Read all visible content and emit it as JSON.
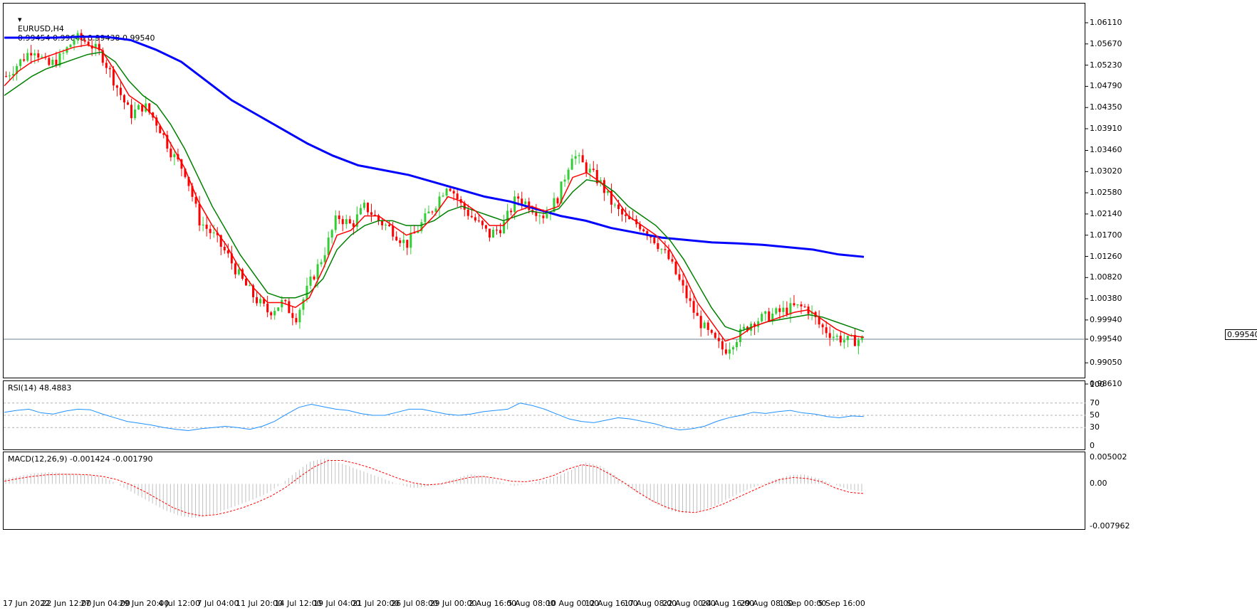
{
  "main_panel": {
    "symbol": "EURUSD,H4",
    "ohlc": "0.99454 0.99643 0.99438 0.99540",
    "current_price": "0.99540"
  },
  "rsi_panel": {
    "title": "RSI(14) 48.4883"
  },
  "macd_panel": {
    "title": "MACD(12,26,9) -0.001424 -0.001790"
  },
  "chart_data": [
    {
      "type": "candlestick",
      "title": "EURUSD,H4",
      "price_axis_ticks": [
        "1.06110",
        "1.05670",
        "1.05230",
        "1.04790",
        "1.04350",
        "1.03910",
        "1.03460",
        "1.03020",
        "1.02580",
        "1.02140",
        "1.01700",
        "1.01260",
        "1.00820",
        "1.00380",
        "0.99940",
        "0.99540",
        "0.99050",
        "0.98610"
      ],
      "ylim": [
        0.9861,
        1.0611
      ],
      "time_labels": [
        "17 Jun 2022",
        "22 Jun 12:00",
        "27 Jun 04:00",
        "29 Jun 20:00",
        "4 Jul 12:00",
        "7 Jul 04:00",
        "11 Jul 20:00",
        "14 Jul 12:00",
        "19 Jul 04:00",
        "21 Jul 20:00",
        "26 Jul 08:00",
        "29 Jul 00:00",
        "2 Aug 16:00",
        "5 Aug 08:00",
        "10 Aug 00:00",
        "12 Aug 16:00",
        "17 Aug 08:00",
        "22 Aug 00:00",
        "24 Aug 16:00",
        "29 Aug 08:00",
        "1 Sep 00:00",
        "5 Sep 16:00"
      ],
      "close_path": [
        1.05,
        1.053,
        1.056,
        1.052,
        1.054,
        1.058,
        1.057,
        1.054,
        1.048,
        1.042,
        1.044,
        1.04,
        1.034,
        1.03,
        1.02,
        1.017,
        1.013,
        1.008,
        1.004,
        1.001,
        1.003,
        1.0,
        1.007,
        1.013,
        1.021,
        1.019,
        1.023,
        1.02,
        1.018,
        1.015,
        1.019,
        1.023,
        1.028,
        1.023,
        1.02,
        1.017,
        1.019,
        1.025,
        1.023,
        1.021,
        1.025,
        1.034,
        1.031,
        1.028,
        1.023,
        1.02,
        1.019,
        1.016,
        1.012,
        1.006,
        1.0,
        0.996,
        0.993,
        0.996,
        0.999,
        1.0,
        1.001,
        1.002,
        1.002,
        0.998,
        0.996,
        0.995,
        0.9954
      ],
      "series": [
        {
          "name": "",
          "color": "#ff0000",
          "values": [
            1.048,
            1.051,
            1.053,
            1.054,
            1.055,
            1.056,
            1.0565,
            1.0555,
            1.051,
            1.046,
            1.044,
            1.041,
            1.036,
            1.031,
            1.024,
            1.019,
            1.015,
            1.01,
            1.006,
            1.003,
            1.003,
            1.002,
            1.004,
            1.01,
            1.017,
            1.018,
            1.021,
            1.021,
            1.019,
            1.017,
            1.018,
            1.021,
            1.025,
            1.024,
            1.022,
            1.019,
            1.019,
            1.022,
            1.023,
            1.022,
            1.023,
            1.029,
            1.03,
            1.028,
            1.025,
            1.021,
            1.019,
            1.017,
            1.014,
            1.009,
            1.003,
            0.999,
            0.995,
            0.996,
            0.998,
            0.999,
            1.0,
            1.001,
            1.0015,
            0.9995,
            0.9975,
            0.9962,
            0.9958
          ]
        },
        {
          "name": "",
          "color": "#008000",
          "values": [
            1.046,
            1.048,
            1.05,
            1.0515,
            1.0525,
            1.0535,
            1.0545,
            1.055,
            1.053,
            1.049,
            1.046,
            1.044,
            1.04,
            1.035,
            1.029,
            1.023,
            1.018,
            1.013,
            1.009,
            1.005,
            1.004,
            1.004,
            1.005,
            1.008,
            1.014,
            1.017,
            1.019,
            1.02,
            1.02,
            1.019,
            1.019,
            1.02,
            1.022,
            1.023,
            1.022,
            1.021,
            1.02,
            1.021,
            1.022,
            1.0215,
            1.0225,
            1.026,
            1.0285,
            1.028,
            1.026,
            1.023,
            1.021,
            1.019,
            1.016,
            1.012,
            1.007,
            1.002,
            0.998,
            0.997,
            0.998,
            0.999,
            0.9995,
            1.0,
            1.0005,
            1.0,
            0.999,
            0.998,
            0.997
          ]
        },
        {
          "name": "",
          "color": "#0000ff",
          "values": [
            1.058,
            1.058,
            1.058,
            1.0582,
            1.0582,
            1.0575,
            1.0555,
            1.053,
            1.049,
            1.045,
            1.042,
            1.039,
            1.036,
            1.0335,
            1.0315,
            1.0305,
            1.0295,
            1.028,
            1.0265,
            1.025,
            1.024,
            1.0225,
            1.021,
            1.02,
            1.0185,
            1.0175,
            1.0165,
            1.016,
            1.0155,
            1.0153,
            1.015,
            1.0145,
            1.014,
            1.013,
            1.0125
          ]
        }
      ]
    },
    {
      "type": "line",
      "title": "RSI(14) 48.4883",
      "ylim": [
        0,
        100
      ],
      "levels": [
        70,
        50,
        30
      ],
      "y_ticks": [
        "100",
        "70",
        "50",
        "30",
        "0"
      ],
      "series": [
        {
          "name": "RSI(14)",
          "color": "#1e90ff",
          "values": [
            55,
            58,
            60,
            54,
            52,
            57,
            60,
            59,
            52,
            46,
            40,
            37,
            34,
            30,
            27,
            25,
            28,
            30,
            32,
            30,
            27,
            32,
            40,
            52,
            63,
            68,
            64,
            60,
            58,
            53,
            50,
            50,
            55,
            60,
            60,
            56,
            52,
            50,
            52,
            56,
            58,
            60,
            70,
            66,
            60,
            52,
            44,
            40,
            38,
            42,
            46,
            44,
            40,
            36,
            30,
            26,
            28,
            32,
            40,
            46,
            50,
            55,
            53,
            56,
            58,
            54,
            52,
            48,
            46,
            49,
            48
          ]
        }
      ]
    },
    {
      "type": "bar",
      "title": "MACD(12,26,9) -0.001424 -0.001790",
      "ylim": [
        -0.007962,
        0.005002
      ],
      "y_ticks": [
        "0.005002",
        "0.00",
        "-0.007962"
      ],
      "series": [
        {
          "name": "MACD(12,26,9)",
          "color": "#c0c0c0",
          "values": [
            0.001,
            0.0015,
            0.002,
            0.0022,
            0.002,
            0.0018,
            0.0016,
            0.001,
            -0.0005,
            -0.002,
            -0.0035,
            -0.005,
            -0.006,
            -0.0064,
            -0.006,
            -0.005,
            -0.004,
            -0.003,
            -0.0018,
            0.0,
            0.0022,
            0.0042,
            0.0048,
            0.004,
            0.003,
            0.002,
            0.001,
            0.0,
            -0.0008,
            -0.0005,
            0.0002,
            0.001,
            0.0018,
            0.0015,
            0.0005,
            -0.0004,
            0.0,
            0.0006,
            0.0014,
            0.0026,
            0.004,
            0.0034,
            0.0016,
            -0.0008,
            -0.0025,
            -0.004,
            -0.0052,
            -0.0055,
            -0.005,
            -0.004,
            -0.0025,
            -0.0012,
            -0.0002,
            0.0008,
            0.0016,
            0.0018,
            0.001,
            0.0,
            -0.001,
            -0.0014
          ]
        },
        {
          "name": "Signal",
          "color": "#ff0000",
          "values": [
            0.0005,
            0.001,
            0.0014,
            0.0017,
            0.0018,
            0.0018,
            0.0017,
            0.0014,
            0.0008,
            -0.0002,
            -0.0015,
            -0.003,
            -0.0045,
            -0.0055,
            -0.006,
            -0.0058,
            -0.0052,
            -0.0044,
            -0.0034,
            -0.0022,
            -0.0006,
            0.0014,
            0.0032,
            0.0044,
            0.0044,
            0.0038,
            0.003,
            0.002,
            0.001,
            0.0002,
            -0.0002,
            0.0,
            0.0006,
            0.0012,
            0.0014,
            0.001,
            0.0005,
            0.0004,
            0.0008,
            0.0016,
            0.0028,
            0.0036,
            0.0032,
            0.0018,
            0.0002,
            -0.0016,
            -0.0032,
            -0.0044,
            -0.0052,
            -0.0054,
            -0.0048,
            -0.0038,
            -0.0026,
            -0.0014,
            -0.0002,
            0.0008,
            0.0012,
            0.001,
            0.0004,
            -0.0008,
            -0.0016,
            -0.0018
          ]
        }
      ]
    }
  ]
}
